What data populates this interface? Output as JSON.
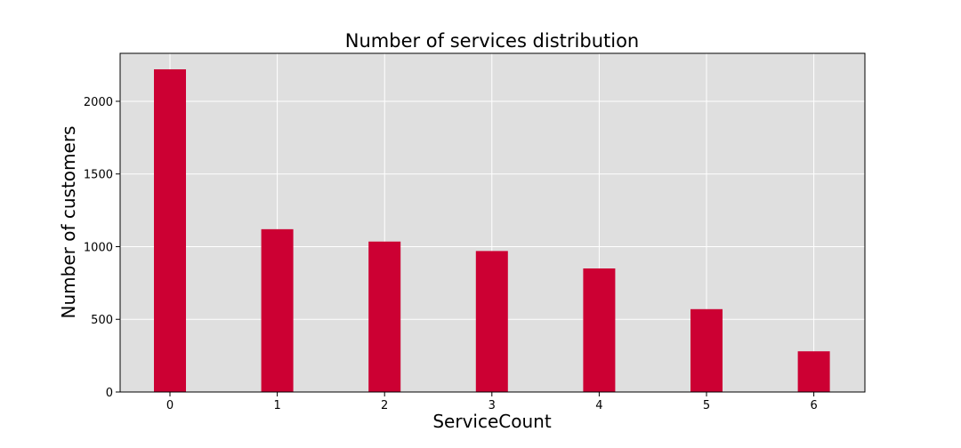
{
  "chart_data": {
    "type": "bar",
    "title": "Number of services distribution",
    "xlabel": "ServiceCount",
    "ylabel": "Number of customers",
    "categories": [
      "0",
      "1",
      "2",
      "3",
      "4",
      "5",
      "6"
    ],
    "values": [
      2220,
      1120,
      1035,
      970,
      850,
      570,
      280
    ],
    "ylim": [
      0,
      2330
    ],
    "yticks": [
      "0",
      "500",
      "1000",
      "1500",
      "2000"
    ],
    "grid": true,
    "legend": "none",
    "colors": {
      "bar": "#cc0033",
      "plot_background": "#dfdfdf",
      "grid": "#ffffff",
      "axis": "#000000"
    }
  }
}
